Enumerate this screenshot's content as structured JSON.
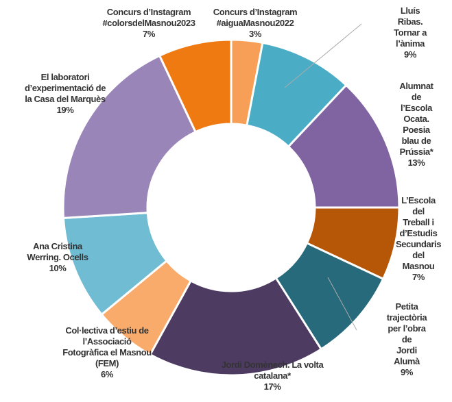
{
  "chart_data": {
    "type": "donut",
    "categories": [
      "Concurs d’Instagram\n#aiguaMasnou2022",
      "Lluís Ribas.\nTornar a l’ànima",
      "Alumnat de\nl’Escola Ocata.\nPoesia blau de\nPrússia*",
      "L’Escola del\nTreball i\nd’Estudis\nSecundaris del\nMasnou",
      "Petita trajectòria\nper l’obra de\nJordi Alumà",
      "Jordi Domènech. La volta\ncatalana*",
      "Col·lectiva d’estiu de\nl’Associació\nFotogràfica el Masnou\n(FEM)",
      "Ana Cristina\nWerring. Ocells",
      "El laboratori\nd’experimentació de\nla Casa del Marquès",
      "Concurs d’Instagram\n#colorsdelMasnou2023"
    ],
    "values": [
      3,
      9,
      13,
      7,
      9,
      17,
      6,
      10,
      19,
      7
    ],
    "value_labels": [
      "3%",
      "9%",
      "13%",
      "7%",
      "9%",
      "17%",
      "6%",
      "10%",
      "19%",
      "7%"
    ],
    "colors": [
      "#f79f56",
      "#4bacc6",
      "#8064a2",
      "#b65708",
      "#276a7c",
      "#4d3b62",
      "#f9ab6b",
      "#6fbcd3",
      "#9a85b8",
      "#f07a12"
    ]
  }
}
